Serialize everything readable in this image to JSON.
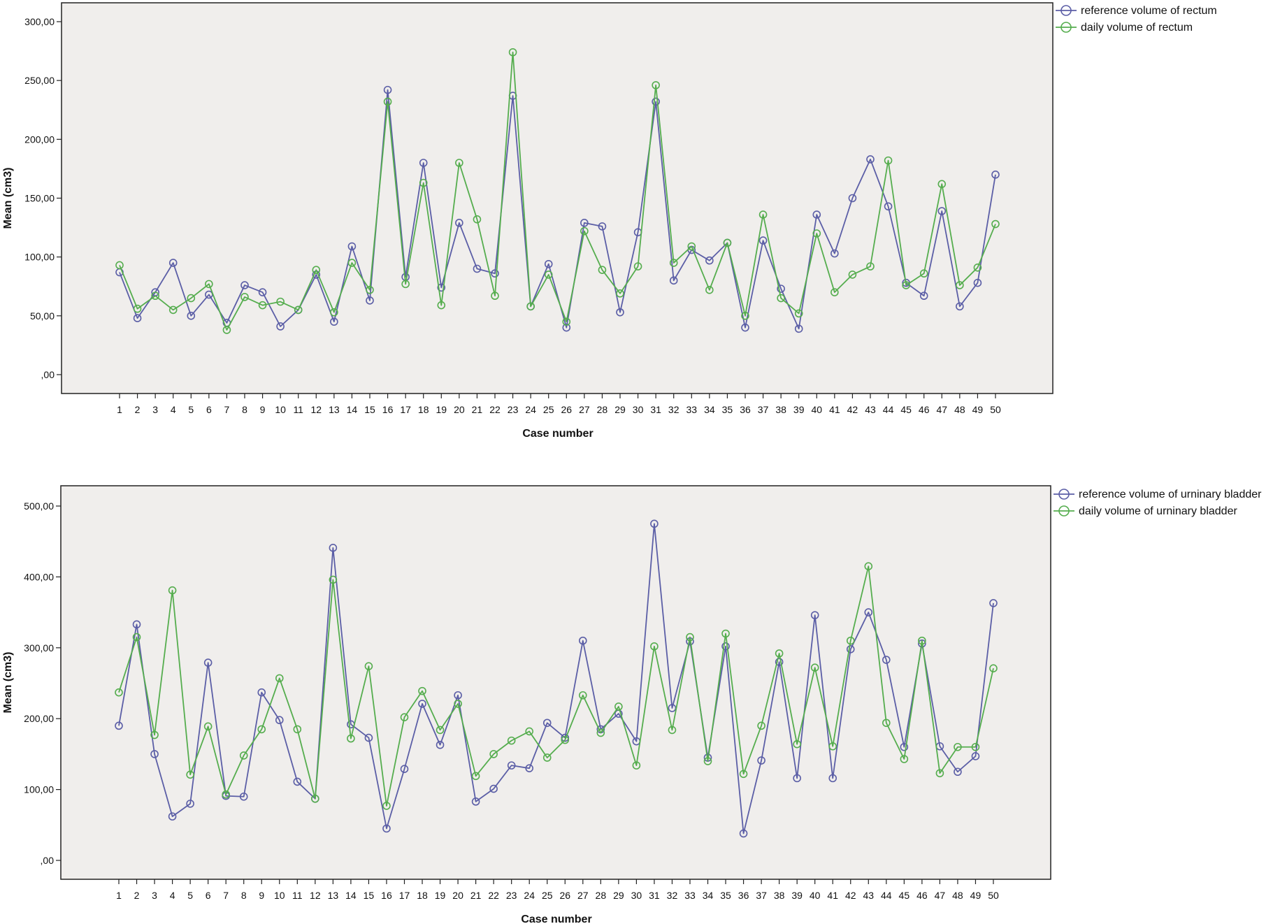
{
  "colors": {
    "plot_bg": "#f0eeec",
    "reference": "#5b5ea6",
    "daily": "#55ad4e",
    "axis": "#222222"
  },
  "chart_data": [
    {
      "type": "line",
      "xlabel": "Case number",
      "ylabel": "Mean (cm3)",
      "ylim": [
        0,
        300
      ],
      "yticks": [
        0,
        50,
        100,
        150,
        200,
        250,
        300
      ],
      "ytick_labels": [
        ",00",
        "50,00",
        "100,00",
        "150,00",
        "200,00",
        "250,00",
        "300,00"
      ],
      "categories": [
        "1",
        "2",
        "3",
        "4",
        "5",
        "6",
        "7",
        "8",
        "9",
        "10",
        "11",
        "12",
        "13",
        "14",
        "15",
        "16",
        "17",
        "18",
        "19",
        "20",
        "21",
        "22",
        "23",
        "24",
        "25",
        "26",
        "27",
        "28",
        "29",
        "30",
        "31",
        "32",
        "33",
        "34",
        "35",
        "36",
        "37",
        "38",
        "39",
        "40",
        "41",
        "42",
        "43",
        "44",
        "45",
        "46",
        "47",
        "48",
        "49",
        "50"
      ],
      "legend_position": "top-right outside plot",
      "series": [
        {
          "name": "reference volume of rectum",
          "color": "#5b5ea6",
          "values": [
            87,
            48,
            70,
            95,
            50,
            68,
            44,
            76,
            70,
            41,
            55,
            85,
            45,
            109,
            63,
            242,
            83,
            180,
            74,
            129,
            90,
            86,
            237,
            58,
            94,
            40,
            129,
            126,
            53,
            121,
            232,
            80,
            106,
            97,
            112,
            40,
            114,
            73,
            39,
            136,
            103,
            150,
            183,
            143,
            78,
            67,
            139,
            58,
            78,
            170
          ]
        },
        {
          "name": "daily volume of rectum",
          "color": "#55ad4e",
          "values": [
            93,
            56,
            67,
            55,
            65,
            77,
            38,
            66,
            59,
            62,
            55,
            89,
            53,
            95,
            72,
            232,
            77,
            163,
            59,
            180,
            132,
            67,
            274,
            58,
            85,
            45,
            122,
            89,
            69,
            92,
            246,
            95,
            109,
            72,
            112,
            50,
            136,
            65,
            52,
            120,
            70,
            85,
            92,
            182,
            76,
            86,
            162,
            76,
            91,
            128
          ]
        }
      ]
    },
    {
      "type": "line",
      "xlabel": "Case number",
      "ylabel": "Mean (cm3)",
      "ylim": [
        0,
        500
      ],
      "yticks": [
        0,
        100,
        200,
        300,
        400,
        500
      ],
      "ytick_labels": [
        ",00",
        "100,00",
        "200,00",
        "300,00",
        "400,00",
        "500,00"
      ],
      "categories": [
        "1",
        "2",
        "3",
        "4",
        "5",
        "6",
        "7",
        "8",
        "9",
        "10",
        "11",
        "12",
        "13",
        "14",
        "15",
        "16",
        "17",
        "18",
        "19",
        "20",
        "21",
        "22",
        "23",
        "24",
        "25",
        "26",
        "27",
        "28",
        "29",
        "30",
        "31",
        "32",
        "33",
        "34",
        "35",
        "36",
        "37",
        "38",
        "39",
        "40",
        "41",
        "42",
        "43",
        "44",
        "45",
        "46",
        "47",
        "48",
        "49",
        "50"
      ],
      "legend_position": "top-right outside plot",
      "series": [
        {
          "name": "reference volume of urninary bladder",
          "color": "#5b5ea6",
          "values": [
            190,
            333,
            150,
            62,
            80,
            279,
            91,
            90,
            237,
            198,
            111,
            87,
            441,
            192,
            173,
            45,
            129,
            221,
            163,
            233,
            83,
            101,
            134,
            130,
            194,
            173,
            310,
            185,
            207,
            168,
            475,
            215,
            309,
            145,
            302,
            38,
            141,
            280,
            116,
            346,
            116,
            298,
            350,
            283,
            160,
            306,
            161,
            125,
            147,
            363
          ]
        },
        {
          "name": "daily volume of urninary bladder",
          "color": "#55ad4e",
          "values": [
            237,
            315,
            177,
            381,
            121,
            189,
            93,
            148,
            185,
            257,
            185,
            87,
            396,
            172,
            274,
            77,
            202,
            239,
            184,
            221,
            119,
            150,
            169,
            182,
            145,
            170,
            233,
            180,
            217,
            134,
            302,
            184,
            315,
            140,
            320,
            122,
            190,
            292,
            164,
            272,
            161,
            310,
            415,
            194,
            143,
            310,
            123,
            160,
            160,
            271
          ]
        }
      ]
    }
  ]
}
